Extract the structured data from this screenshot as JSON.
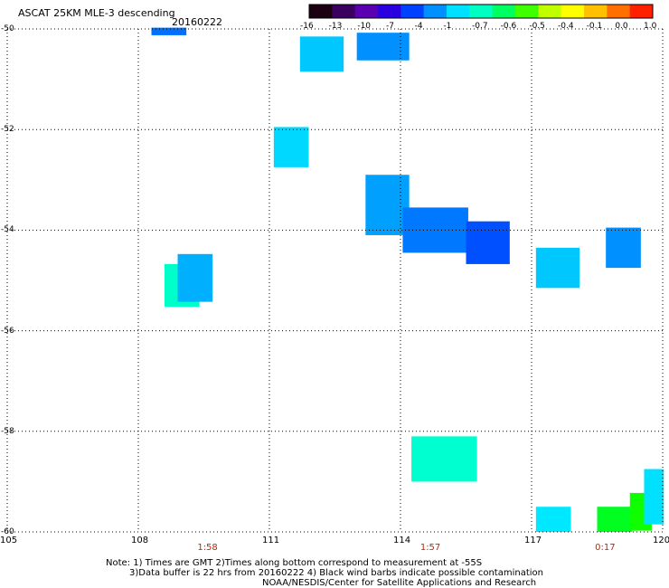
{
  "header": {
    "title": "ASCAT 25KM MLE-3 descending",
    "date": "20160222"
  },
  "colorbar": {
    "ticks": [
      "-16",
      "-13",
      "-10",
      "-7",
      "-4",
      "-1",
      "-0.7",
      "-0.6",
      "-0.5",
      "-0.4",
      "-0.1",
      "0.0",
      "1.0"
    ],
    "colors": [
      "#1a0010",
      "#3a0060",
      "#5a00b0",
      "#2a00e0",
      "#0040ff",
      "#0090ff",
      "#00e0ff",
      "#00ffc0",
      "#00ff60",
      "#40ff00",
      "#c0ff00",
      "#ffff00",
      "#ffc000",
      "#ff7000",
      "#ff2000"
    ]
  },
  "axes": {
    "y_labels": [
      "-50",
      "-52",
      "-54",
      "-56",
      "-58",
      "-60"
    ],
    "x_labels": [
      "105",
      "108",
      "111",
      "114",
      "117",
      "120"
    ],
    "time_labels": [
      "1:58",
      "1:57",
      "0:17"
    ]
  },
  "map_data": {
    "lon_range": [
      105,
      120
    ],
    "lat_range": [
      -50,
      -60
    ],
    "cells": [
      {
        "lon": 108.7,
        "lat": -50.05,
        "w": 0.8,
        "h": 0.15,
        "color": "#0070ff"
      },
      {
        "lon": 112.2,
        "lat": -50.5,
        "w": 1.0,
        "h": 0.7,
        "color": "#00c8ff"
      },
      {
        "lon": 113.6,
        "lat": -50.35,
        "w": 1.2,
        "h": 0.55,
        "color": "#0090ff"
      },
      {
        "lon": 111.5,
        "lat": -52.35,
        "w": 0.8,
        "h": 0.8,
        "color": "#00d8ff"
      },
      {
        "lon": 113.7,
        "lat": -53.5,
        "w": 1.0,
        "h": 1.2,
        "color": "#00a0ff"
      },
      {
        "lon": 114.8,
        "lat": -54.0,
        "w": 1.5,
        "h": 0.9,
        "color": "#0078ff"
      },
      {
        "lon": 116.0,
        "lat": -54.25,
        "w": 1.0,
        "h": 0.85,
        "color": "#0050ff"
      },
      {
        "lon": 109.0,
        "lat": -55.1,
        "w": 0.8,
        "h": 0.85,
        "color": "#00ffc8"
      },
      {
        "lon": 109.3,
        "lat": -54.95,
        "w": 0.8,
        "h": 0.95,
        "color": "#00b0ff"
      },
      {
        "lon": 117.6,
        "lat": -54.75,
        "w": 1.0,
        "h": 0.8,
        "color": "#00c8ff"
      },
      {
        "lon": 119.1,
        "lat": -54.35,
        "w": 0.8,
        "h": 0.8,
        "color": "#0090ff"
      },
      {
        "lon": 115.0,
        "lat": -58.55,
        "w": 1.5,
        "h": 0.9,
        "color": "#00ffd0"
      },
      {
        "lon": 117.5,
        "lat": -59.75,
        "w": 0.8,
        "h": 0.5,
        "color": "#00e8ff"
      },
      {
        "lon": 118.9,
        "lat": -59.75,
        "w": 0.8,
        "h": 0.5,
        "color": "#00ff20"
      },
      {
        "lon": 119.5,
        "lat": -59.6,
        "w": 0.5,
        "h": 0.75,
        "color": "#10ff00"
      },
      {
        "lon": 119.8,
        "lat": -59.3,
        "w": 0.45,
        "h": 1.1,
        "color": "#00e0ff"
      }
    ]
  },
  "footer": {
    "line1": "Note: 1) Times are GMT 2)Times along bottom correspond to measurement at -55S",
    "line2": "3)Data buffer is 22 hrs from 20160222 4) Black wind barbs indicate possible contamination",
    "line3": "NOAA/NESDIS/Center for Satellite Applications and Research"
  }
}
